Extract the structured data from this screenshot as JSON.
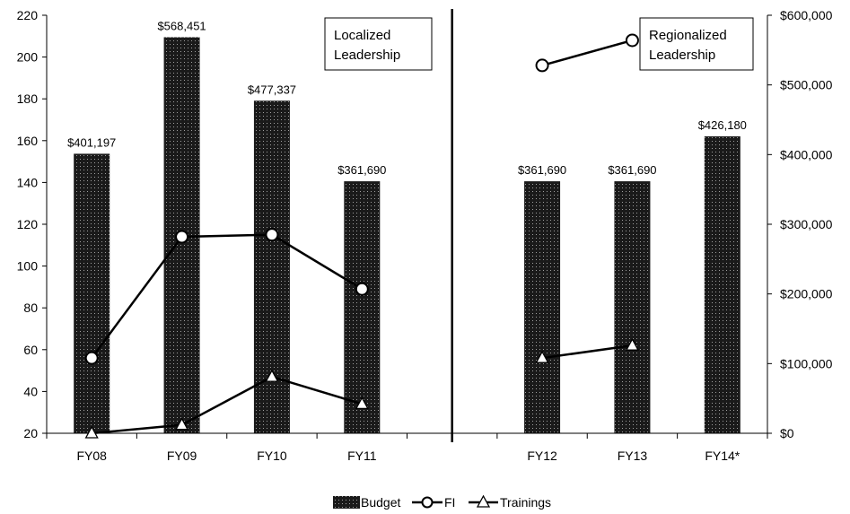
{
  "chart_data": {
    "type": "bar",
    "categories": [
      "FY08",
      "FY09",
      "FY10",
      "FY11",
      "",
      "FY12",
      "FY13",
      "FY14*"
    ],
    "left_axis": {
      "ylim": [
        20,
        220
      ],
      "ticks": [
        "20",
        "40",
        "60",
        "80",
        "100",
        "120",
        "140",
        "160",
        "180",
        "200",
        "220"
      ]
    },
    "right_axis": {
      "ylim": [
        0,
        600000
      ],
      "ticks": [
        "$0",
        "$100,000",
        "$200,000",
        "$300,000",
        "$400,000",
        "$500,000",
        "$600,000"
      ]
    },
    "series": [
      {
        "name": "Budget",
        "kind": "bar",
        "axis": "right",
        "values": [
          401197,
          568451,
          477337,
          361690,
          null,
          361690,
          361690,
          426180
        ],
        "labels": [
          "$401,197",
          "$568,451",
          "$477,337",
          "$361,690",
          "",
          "$361,690",
          "$361,690",
          "$426,180"
        ]
      },
      {
        "name": "FI",
        "kind": "line",
        "marker": "circle",
        "axis": "left",
        "values": [
          56,
          114,
          115,
          89,
          null,
          196,
          208,
          null
        ]
      },
      {
        "name": "Trainings",
        "kind": "line",
        "marker": "triangle",
        "axis": "left",
        "values": [
          20,
          24,
          47,
          34,
          null,
          56,
          62,
          null
        ]
      }
    ],
    "annotations": [
      "Localized Leadership",
      "Regionalized Leadership"
    ],
    "legend": {
      "placement": "bottom",
      "entries": [
        "Budget",
        "FI",
        "Trainings"
      ]
    },
    "grid": false
  },
  "annotations": {
    "left_line1": "Localized",
    "left_line2": "Leadership",
    "right_line1": "Regionalized",
    "right_line2": "Leadership"
  },
  "legend": {
    "budget": "Budget",
    "fi": "FI",
    "trainings": "Trainings"
  },
  "colors": {
    "bar_fill": "#1a1a1a",
    "bar_dot": "#9a9a9a",
    "line": "#000000"
  }
}
